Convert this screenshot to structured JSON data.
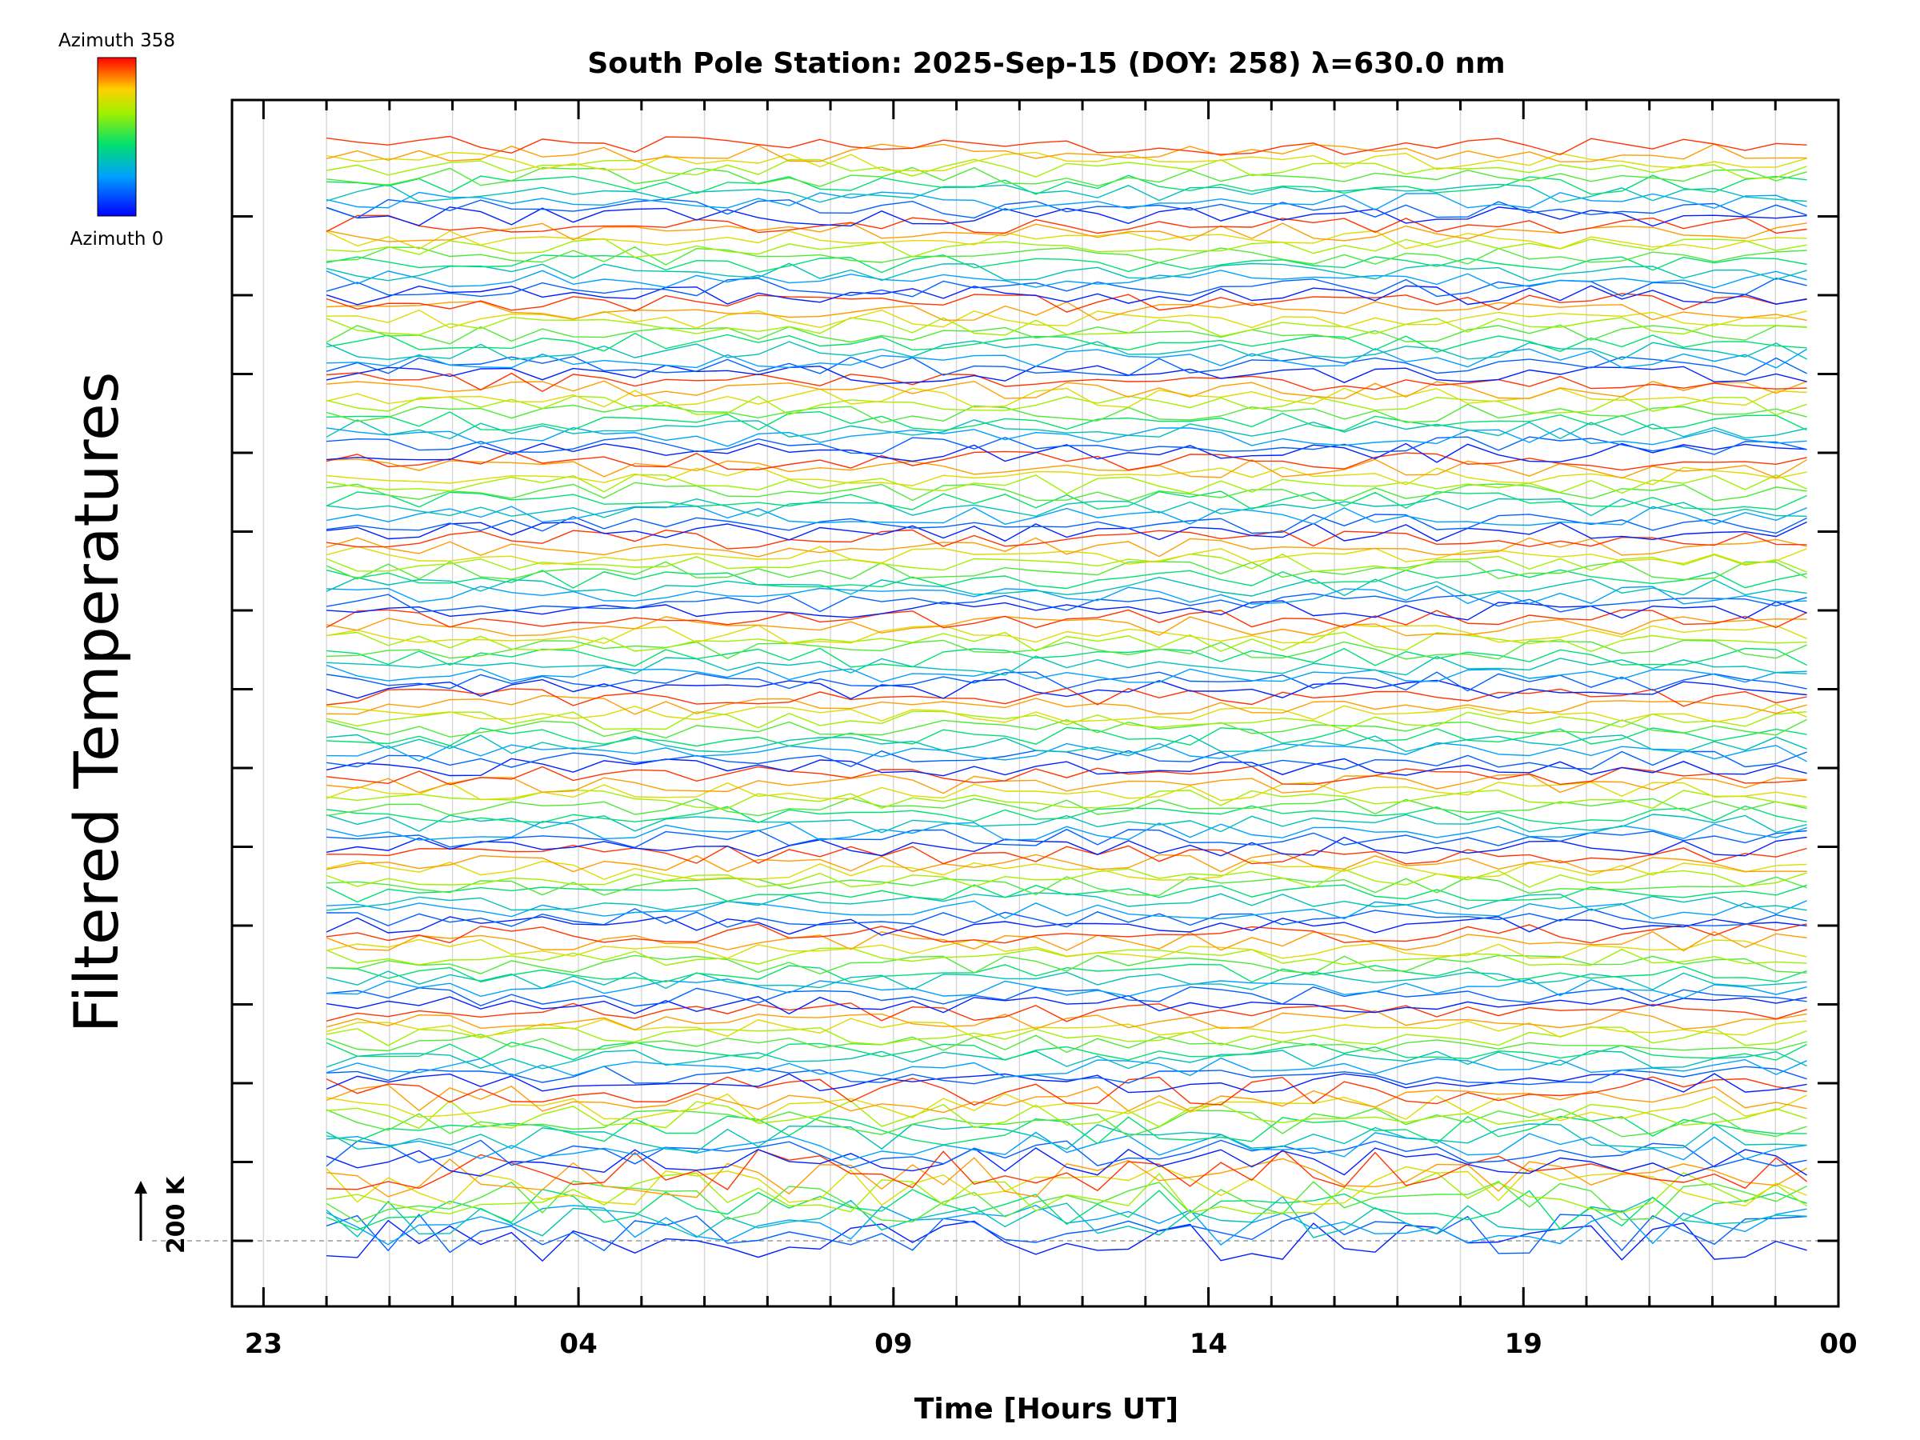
{
  "chart_data": {
    "type": "line",
    "title": "South Pole Station: 2025-Sep-15 (DOY: 258) λ=630.0 nm",
    "xlabel": "Time [Hours UT]",
    "ylabel": "Filtered Temperatures",
    "x_tick_labels": [
      "23",
      "04",
      "09",
      "14",
      "19",
      "00"
    ],
    "x_tick_hours": [
      -1,
      4,
      9,
      14,
      19,
      24
    ],
    "xlim_hours": [
      -1.5,
      24
    ],
    "data_start_hour": 0,
    "data_end_hour": 23.5,
    "colorbar": {
      "top_label": "Azimuth 358",
      "bottom_label": "Azimuth 0",
      "min": 0,
      "max": 358,
      "colormap": "rainbow (blue → green → yellow → red)"
    },
    "scale_bar": {
      "label": "200 K",
      "value_K": 200
    },
    "n_lanes": 14,
    "lines_per_lane": 10,
    "grid": true,
    "colors": {
      "grid": "#d8d8d8",
      "axis": "#000000",
      "baseline": "#999999"
    }
  }
}
